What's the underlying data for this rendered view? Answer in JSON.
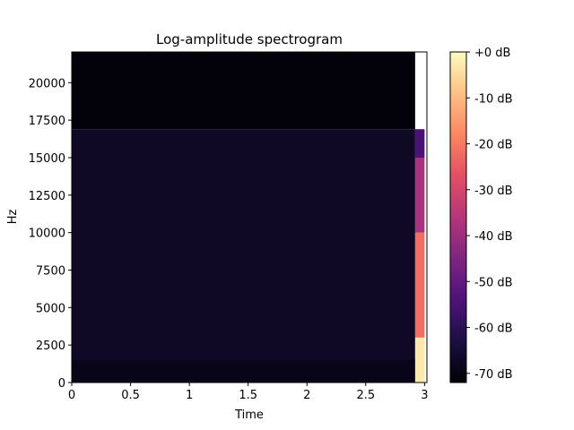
{
  "chart_data": {
    "type": "heatmap",
    "title": "Log-amplitude spectrogram",
    "xlabel": "Time",
    "ylabel": "Hz",
    "xlim": [
      0,
      3.02
    ],
    "ylim": [
      0,
      22050
    ],
    "x_ticks": [
      0,
      0.5,
      1,
      1.5,
      2,
      2.5,
      3
    ],
    "x_tick_labels": [
      "0",
      "0.5",
      "1",
      "1.5",
      "2",
      "2.5",
      "3"
    ],
    "y_ticks": [
      0,
      2500,
      5000,
      7500,
      10000,
      12500,
      15000,
      17500,
      20000
    ],
    "y_tick_labels": [
      "0",
      "2500",
      "5000",
      "7500",
      "10000",
      "12500",
      "15000",
      "17500",
      "20000"
    ],
    "colormap": "magma",
    "colorbar": {
      "range_db": [
        -72,
        0
      ],
      "ticks": [
        0,
        -10,
        -20,
        -30,
        -40,
        -50,
        -60,
        -70
      ],
      "tick_labels": [
        "+0 dB",
        "-10 dB",
        "-20 dB",
        "-30 dB",
        "-40 dB",
        "-50 dB",
        "-60 dB",
        "-70 dB"
      ]
    },
    "regions": [
      {
        "time": [
          0,
          2.92
        ],
        "hz": [
          16900,
          22050
        ],
        "level_db": -71
      },
      {
        "time": [
          0,
          2.92
        ],
        "hz": [
          0,
          16900
        ],
        "level_db": -67
      },
      {
        "time": [
          0,
          2.92
        ],
        "hz": [
          0,
          1500
        ],
        "level_db": -69
      },
      {
        "time": [
          2.92,
          3.0
        ],
        "hz": [
          0,
          3000
        ],
        "level_db": -3
      },
      {
        "time": [
          2.92,
          3.0
        ],
        "hz": [
          3000,
          10000
        ],
        "level_db": -22
      },
      {
        "time": [
          2.92,
          3.0
        ],
        "hz": [
          10000,
          15000
        ],
        "level_db": -38
      },
      {
        "time": [
          2.92,
          3.0
        ],
        "hz": [
          15000,
          16900
        ],
        "level_db": -55
      }
    ]
  }
}
